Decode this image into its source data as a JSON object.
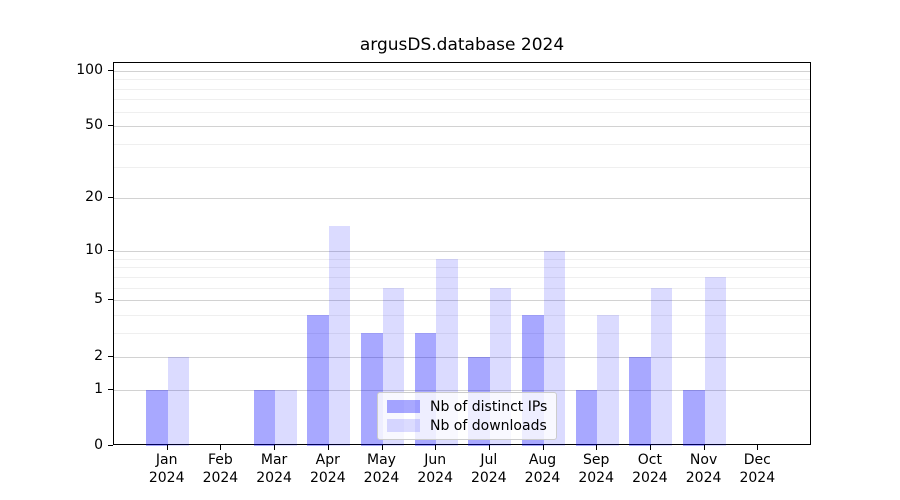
{
  "chart_data": {
    "type": "bar",
    "title": "argusDS.database 2024",
    "categories": [
      "Jan\n2024",
      "Feb\n2024",
      "Mar\n2024",
      "Apr\n2024",
      "May\n2024",
      "Jun\n2024",
      "Jul\n2024",
      "Aug\n2024",
      "Sep\n2024",
      "Oct\n2024",
      "Nov\n2024",
      "Dec\n2024"
    ],
    "series": [
      {
        "name": "Nb of distinct IPs",
        "color": "rgba(0,0,255,0.34)",
        "values": [
          1,
          0,
          1,
          4,
          3,
          3,
          2,
          4,
          1,
          2,
          1,
          0
        ]
      },
      {
        "name": "Nb of downloads",
        "color": "rgba(0,0,255,0.14)",
        "values": [
          2,
          0,
          1,
          14,
          6,
          9,
          6,
          10,
          4,
          6,
          7,
          0
        ]
      }
    ],
    "xlabel": "",
    "ylabel": "",
    "y_scale": "log1p",
    "y_axis": {
      "ticks": [
        0,
        1,
        2,
        5,
        10,
        20,
        50,
        100
      ],
      "minor_gridlines": [
        3,
        4,
        6,
        7,
        8,
        9,
        30,
        40,
        60,
        70,
        80,
        90
      ],
      "max": 110
    },
    "grid": true,
    "legend": {
      "position": "lower-center-inside",
      "labels": [
        "Nb of distinct IPs",
        "Nb of downloads"
      ]
    }
  }
}
